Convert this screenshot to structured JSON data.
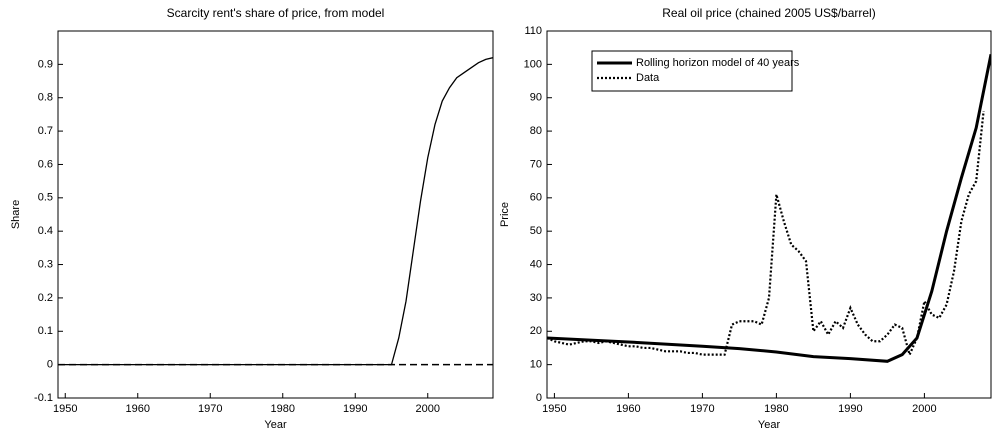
{
  "chart_data": [
    {
      "type": "line",
      "title": "Scarcity rent's share of price, from model",
      "xlabel": "Year",
      "ylabel": "Share",
      "xlim": [
        1949,
        2009
      ],
      "xticks": [
        1950,
        1960,
        1970,
        1980,
        1990,
        2000
      ],
      "ylim": [
        -0.1,
        1.0
      ],
      "yticks": [
        -0.1,
        0,
        0.1,
        0.2,
        0.3,
        0.4,
        0.5,
        0.6,
        0.7,
        0.8,
        0.9
      ],
      "series": [
        {
          "color": "#000000",
          "linestyle": "solid",
          "width": 1.3,
          "x": [
            1949,
            1995,
            1996,
            1997,
            1998,
            1999,
            2000,
            2001,
            2002,
            2003,
            2004,
            2005,
            2006,
            2007,
            2008,
            2009
          ],
          "values": [
            0,
            0,
            0.08,
            0.19,
            0.34,
            0.49,
            0.62,
            0.72,
            0.79,
            0.83,
            0.86,
            0.875,
            0.89,
            0.905,
            0.915,
            0.92
          ]
        },
        {
          "color": "#000000",
          "linestyle": "dashed",
          "width": 1.5,
          "x": [
            1949,
            2009
          ],
          "values": [
            0,
            0
          ]
        }
      ]
    },
    {
      "type": "line",
      "title": "Real oil price (chained 2005 US$/barrel)",
      "xlabel": "Year",
      "ylabel": "Price",
      "xlim": [
        1949,
        2009
      ],
      "xticks": [
        1950,
        1960,
        1970,
        1980,
        1990,
        2000
      ],
      "ylim": [
        0,
        110
      ],
      "yticks": [
        0,
        10,
        20,
        30,
        40,
        50,
        60,
        70,
        80,
        90,
        100,
        110
      ],
      "legend": "upper-left",
      "series": [
        {
          "name": "Rolling horizon model of 40 years",
          "color": "#000000",
          "linestyle": "solid",
          "width": 3,
          "x": [
            1949,
            1960,
            1970,
            1975,
            1980,
            1985,
            1990,
            1995,
            1997,
            1999,
            2001,
            2003,
            2005,
            2007,
            2009
          ],
          "values": [
            18,
            16.8,
            15.5,
            14.8,
            13.8,
            12.4,
            11.8,
            11,
            13,
            18,
            32,
            50,
            66,
            81,
            103
          ]
        },
        {
          "name": "Data",
          "color": "#000000",
          "linestyle": "dotted",
          "width": 2.2,
          "x": [
            1949,
            1950,
            1951,
            1952,
            1953,
            1954,
            1955,
            1956,
            1957,
            1958,
            1959,
            1960,
            1961,
            1962,
            1963,
            1964,
            1965,
            1966,
            1967,
            1968,
            1969,
            1970,
            1971,
            1972,
            1973,
            1974,
            1975,
            1976,
            1977,
            1978,
            1979,
            1980,
            1981,
            1982,
            1983,
            1984,
            1985,
            1986,
            1987,
            1988,
            1989,
            1990,
            1991,
            1992,
            1993,
            1994,
            1995,
            1996,
            1997,
            1998,
            1999,
            2000,
            2001,
            2002,
            2003,
            2004,
            2005,
            2006,
            2007,
            2008
          ],
          "values": [
            18,
            17,
            16.5,
            16,
            16.5,
            17,
            17,
            16.5,
            17,
            16.5,
            16,
            15.5,
            15.5,
            15,
            15,
            14.5,
            14,
            14,
            14,
            13.5,
            13.5,
            13,
            13,
            13,
            13,
            22,
            23,
            23,
            23,
            22,
            30,
            61,
            53,
            46,
            44,
            41,
            20,
            23,
            19,
            23,
            21,
            27,
            22,
            19,
            17,
            17,
            19,
            22,
            21,
            13,
            18,
            29,
            25,
            24,
            28,
            38,
            53,
            61,
            65,
            86
          ]
        }
      ]
    }
  ]
}
